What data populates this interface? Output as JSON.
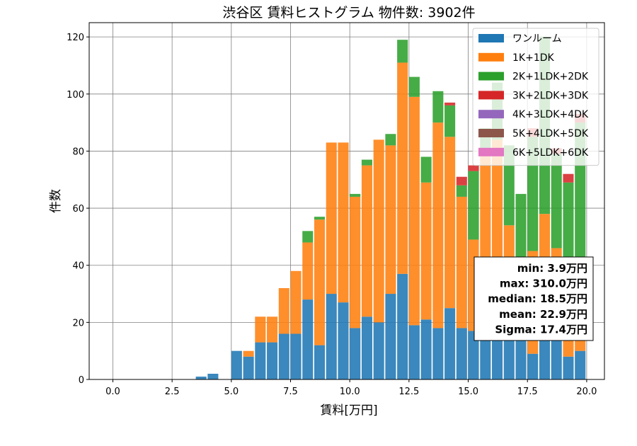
{
  "chart_data": {
    "type": "bar",
    "stacked": true,
    "title": "渋谷区 賃料ヒストグラム 物件数: 3902件",
    "xlabel": "賃料[万円]",
    "ylabel": "件数",
    "xlim": [
      -1,
      20.75
    ],
    "ylim": [
      0,
      125
    ],
    "xticks": [
      0,
      2.5,
      5,
      7.5,
      10,
      12.5,
      15,
      17.5,
      20
    ],
    "xtick_labels": [
      "0.0",
      "2.5",
      "5.0",
      "7.5",
      "10.0",
      "12.5",
      "15.0",
      "17.5",
      "20.0"
    ],
    "yticks": [
      0,
      20,
      40,
      60,
      80,
      100,
      120
    ],
    "ytick_labels": [
      "0",
      "20",
      "40",
      "60",
      "80",
      "100",
      "120"
    ],
    "grid": true,
    "legend_position": "top-right",
    "bin_width": 0.5,
    "bin_starts": [
      3.0,
      3.5,
      4.0,
      4.5,
      5.0,
      5.5,
      6.0,
      6.5,
      7.0,
      7.5,
      8.0,
      8.5,
      9.0,
      9.5,
      10.0,
      10.5,
      11.0,
      11.5,
      12.0,
      12.5,
      13.0,
      13.5,
      14.0,
      14.5,
      15.0,
      15.5,
      16.0,
      16.5,
      17.0,
      17.5,
      18.0,
      18.5,
      19.0,
      19.5
    ],
    "series": [
      {
        "name": "ワンルーム",
        "color": "#1f77b4",
        "values": [
          0,
          1,
          2,
          0,
          10,
          8,
          13,
          13,
          16,
          16,
          28,
          12,
          30,
          27,
          18,
          22,
          20,
          30,
          37,
          19,
          21,
          18,
          25,
          18,
          17,
          16,
          16,
          15,
          16,
          9,
          15,
          15,
          8,
          10
        ]
      },
      {
        "name": "1K+1DK",
        "color": "#ff7f0e",
        "values": [
          0,
          0,
          0,
          0,
          0,
          2,
          9,
          9,
          16,
          22,
          20,
          44,
          53,
          56,
          46,
          53,
          64,
          52,
          74,
          80,
          48,
          72,
          60,
          46,
          32,
          64,
          68,
          39,
          17,
          36,
          43,
          31,
          21,
          25
        ]
      },
      {
        "name": "2K+1LDK+2DK",
        "color": "#2ca02c",
        "values": [
          0,
          0,
          0,
          0,
          0,
          0,
          0,
          0,
          0,
          0,
          4,
          1,
          0,
          0,
          1,
          2,
          0,
          4,
          8,
          7,
          9,
          11,
          11,
          4,
          24,
          8,
          20,
          28,
          32,
          40,
          62,
          33,
          40,
          55
        ]
      },
      {
        "name": "3K+2LDK+3DK",
        "color": "#d62728",
        "values": [
          0,
          0,
          0,
          0,
          0,
          0,
          0,
          0,
          0,
          0,
          0,
          0,
          0,
          0,
          0,
          0,
          0,
          0,
          0,
          0,
          0,
          0,
          1,
          3,
          2,
          0,
          0,
          0,
          0,
          3,
          0,
          2,
          3,
          3
        ]
      },
      {
        "name": "4K+3LDK+4DK",
        "color": "#9467bd",
        "values": [
          0,
          0,
          0,
          0,
          0,
          0,
          0,
          0,
          0,
          0,
          0,
          0,
          0,
          0,
          0,
          0,
          0,
          0,
          0,
          0,
          0,
          0,
          0,
          0,
          0,
          0,
          0,
          0,
          0,
          0,
          0,
          0,
          0,
          0
        ]
      },
      {
        "name": "5K+4LDK+5DK",
        "color": "#8c564b",
        "values": [
          0,
          0,
          0,
          0,
          0,
          0,
          0,
          0,
          0,
          0,
          0,
          0,
          0,
          0,
          0,
          0,
          0,
          0,
          0,
          0,
          0,
          0,
          0,
          0,
          0,
          0,
          0,
          0,
          0,
          0,
          0,
          0,
          0,
          0
        ]
      },
      {
        "name": "6K+5LDK+6DK",
        "color": "#e377c2",
        "values": [
          0,
          0,
          0,
          0,
          0,
          0,
          0,
          0,
          0,
          0,
          0,
          0,
          0,
          0,
          0,
          0,
          0,
          0,
          0,
          0,
          0,
          0,
          0,
          0,
          0,
          0,
          0,
          0,
          0,
          0,
          0,
          0,
          0,
          0
        ]
      }
    ],
    "stats": [
      "min: 3.9万円",
      "max: 310.0万円",
      "median: 18.5万円",
      "mean: 22.9万円",
      "Sigma: 17.4万円"
    ]
  }
}
